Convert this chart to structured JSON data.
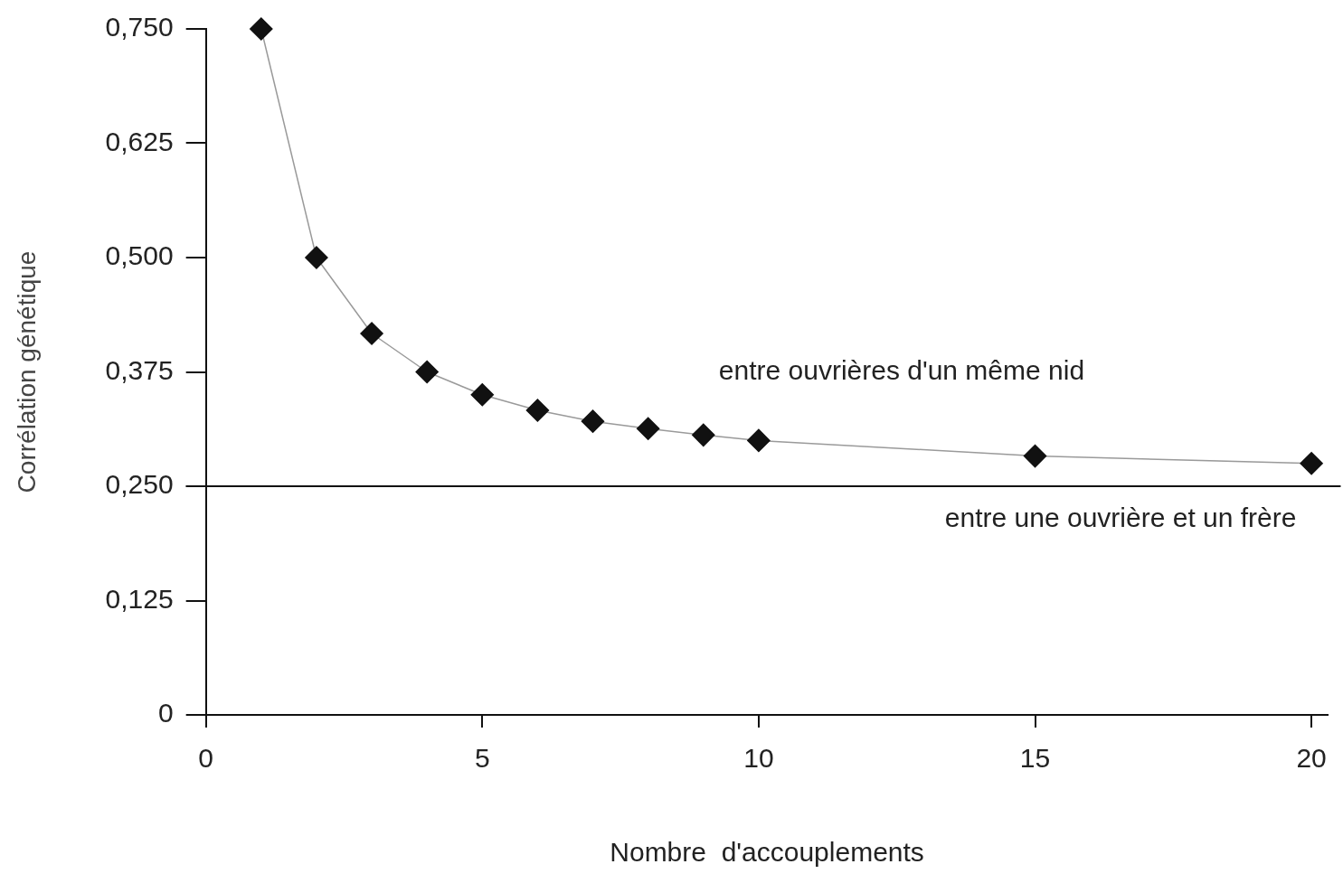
{
  "chart_data": {
    "type": "line",
    "xlabel": "Nombre  d'accouplements",
    "ylabel": "Corrélation génétique",
    "x": [
      1,
      2,
      3,
      4,
      5,
      6,
      7,
      8,
      9,
      10,
      15,
      20
    ],
    "series": [
      {
        "color": "#111111",
        "values": [
          0.75,
          0.5,
          0.417,
          0.375,
          0.35,
          0.333,
          0.321,
          0.313,
          0.306,
          0.3,
          0.283,
          0.275
        ]
      }
    ],
    "marker": "diamond",
    "line_style": "solid",
    "grid": false,
    "legend": false,
    "xlim": [
      0,
      20.3
    ],
    "ylim": [
      0,
      0.75
    ],
    "xticks": [
      0,
      5,
      10,
      15,
      20
    ],
    "yticks": [
      0,
      {
        "value": 0.125,
        "label": "0,125"
      },
      {
        "value": 0.25,
        "label": "0,250"
      },
      {
        "value": 0.375,
        "label": "0,375"
      },
      {
        "value": 0.5,
        "label": "0,500"
      },
      {
        "value": 0.625,
        "label": "0,625"
      },
      {
        "value": 0.75,
        "label": "0,750"
      }
    ],
    "ref_lines": [
      {
        "axis": "y",
        "value": 0.25,
        "label": "entre une ouvrière et un frère",
        "color": "#111111"
      }
    ],
    "annotations": [
      "entre ouvrières d'un même nid"
    ]
  }
}
